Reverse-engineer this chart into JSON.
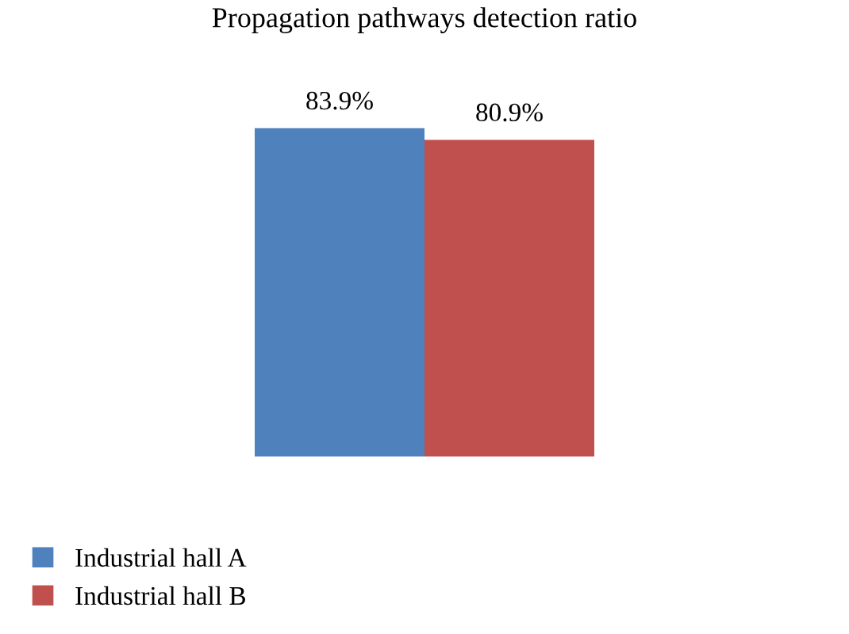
{
  "chart_data": {
    "type": "bar",
    "title": "Propagation pathways detection ratio",
    "categories": [
      null
    ],
    "series": [
      {
        "name": "Industrial hall A",
        "color": "#4f81bd",
        "values": [
          83.9
        ],
        "value_labels": [
          "83.9%"
        ]
      },
      {
        "name": "Industrial hall B",
        "color": "#c0504d",
        "values": [
          80.9
        ],
        "value_labels": [
          "80.9%"
        ]
      }
    ],
    "legend": "bottom left",
    "grid": false
  }
}
